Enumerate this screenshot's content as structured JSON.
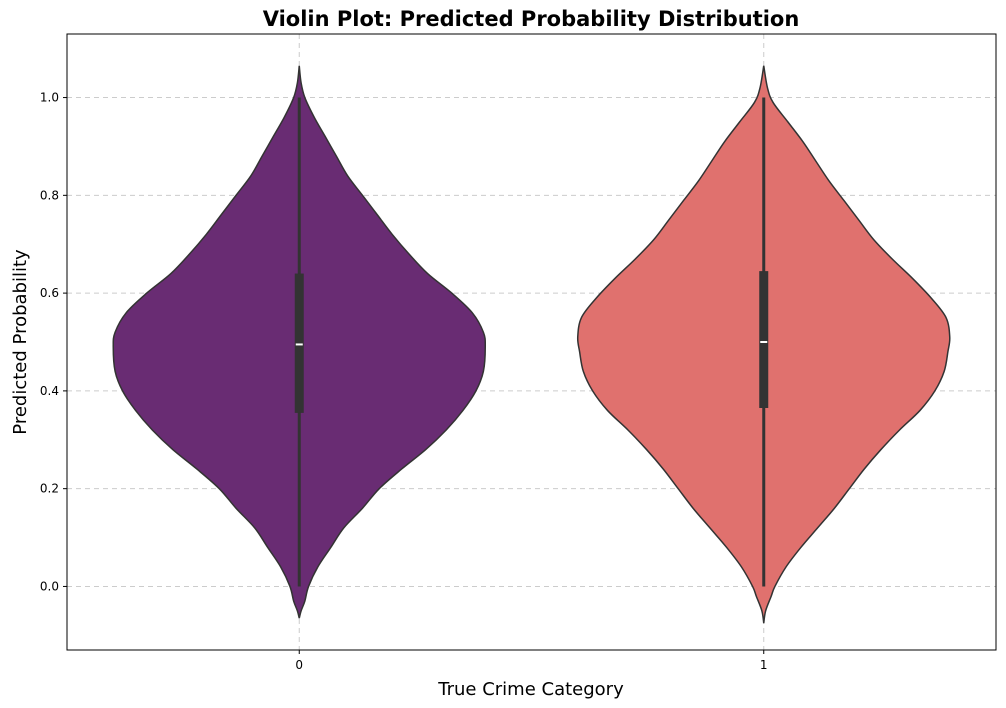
{
  "colors": {
    "title": "#2c3e50",
    "violin_0": "#692c73",
    "violin_1": "#e0716e",
    "outline": "#333333",
    "median": "#ffffff"
  },
  "chart_data": {
    "type": "violin",
    "title": "Violin Plot: Predicted Probability Distribution",
    "xlabel": "True Crime Category",
    "ylabel": "Predicted Probability",
    "categories": [
      "0",
      "1"
    ],
    "ylim": [
      -0.13,
      1.13
    ],
    "yticks": [
      "0.0",
      "0.2",
      "0.4",
      "0.6",
      "0.8",
      "1.0"
    ],
    "grid": true,
    "series": [
      {
        "category": "0",
        "color": "#692c73",
        "quartiles": {
          "min": 0.0,
          "q1": 0.355,
          "median": 0.495,
          "q3": 0.64,
          "max": 1.0
        },
        "range": [
          -0.065,
          1.065
        ],
        "density": [
          [
            -0.065,
            0.0
          ],
          [
            -0.05,
            0.01
          ],
          [
            -0.03,
            0.03
          ],
          [
            0.0,
            0.05
          ],
          [
            0.04,
            0.1
          ],
          [
            0.08,
            0.17
          ],
          [
            0.12,
            0.24
          ],
          [
            0.16,
            0.34
          ],
          [
            0.2,
            0.43
          ],
          [
            0.24,
            0.55
          ],
          [
            0.28,
            0.68
          ],
          [
            0.32,
            0.79
          ],
          [
            0.36,
            0.88
          ],
          [
            0.4,
            0.95
          ],
          [
            0.44,
            0.99
          ],
          [
            0.49,
            1.0
          ],
          [
            0.52,
            0.99
          ],
          [
            0.56,
            0.93
          ],
          [
            0.6,
            0.82
          ],
          [
            0.64,
            0.69
          ],
          [
            0.68,
            0.59
          ],
          [
            0.72,
            0.5
          ],
          [
            0.76,
            0.42
          ],
          [
            0.8,
            0.34
          ],
          [
            0.84,
            0.26
          ],
          [
            0.88,
            0.2
          ],
          [
            0.92,
            0.14
          ],
          [
            0.96,
            0.08
          ],
          [
            1.0,
            0.03
          ],
          [
            1.03,
            0.01
          ],
          [
            1.065,
            0.0
          ]
        ]
      },
      {
        "category": "1",
        "color": "#e0716e",
        "quartiles": {
          "min": 0.0,
          "q1": 0.365,
          "median": 0.5,
          "q3": 0.645,
          "max": 1.0
        },
        "range": [
          -0.075,
          1.065
        ],
        "density": [
          [
            -0.075,
            0.0
          ],
          [
            -0.05,
            0.01
          ],
          [
            -0.02,
            0.04
          ],
          [
            0.0,
            0.06
          ],
          [
            0.04,
            0.12
          ],
          [
            0.08,
            0.2
          ],
          [
            0.12,
            0.29
          ],
          [
            0.16,
            0.38
          ],
          [
            0.2,
            0.46
          ],
          [
            0.24,
            0.54
          ],
          [
            0.28,
            0.63
          ],
          [
            0.32,
            0.73
          ],
          [
            0.36,
            0.84
          ],
          [
            0.4,
            0.92
          ],
          [
            0.44,
            0.97
          ],
          [
            0.48,
            0.99
          ],
          [
            0.51,
            1.0
          ],
          [
            0.55,
            0.98
          ],
          [
            0.59,
            0.9
          ],
          [
            0.63,
            0.8
          ],
          [
            0.67,
            0.69
          ],
          [
            0.71,
            0.59
          ],
          [
            0.75,
            0.51
          ],
          [
            0.79,
            0.43
          ],
          [
            0.83,
            0.35
          ],
          [
            0.87,
            0.28
          ],
          [
            0.91,
            0.21
          ],
          [
            0.95,
            0.13
          ],
          [
            0.99,
            0.05
          ],
          [
            1.02,
            0.02
          ],
          [
            1.065,
            0.0
          ]
        ]
      }
    ]
  }
}
